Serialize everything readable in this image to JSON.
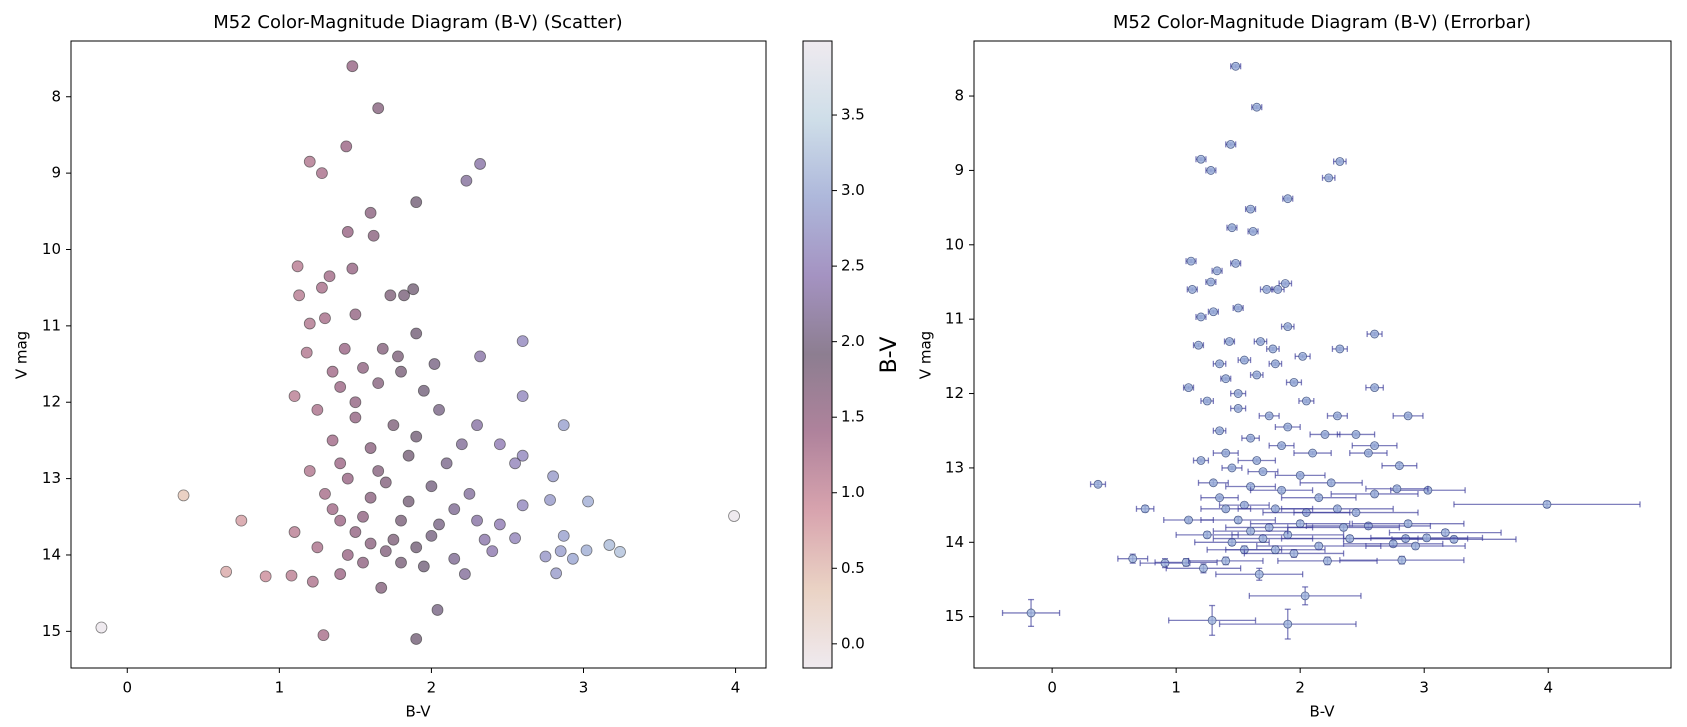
{
  "chart_data": [
    {
      "type": "scatter",
      "title": "M52 Color-Magnitude Diagram (B-V) (Scatter)",
      "xlabel": "B-V",
      "ylabel": "V mag",
      "x": [
        1.48,
        1.65,
        1.44,
        1.2,
        1.28,
        2.32,
        2.23,
        1.9,
        1.6,
        1.62,
        1.45,
        1.48,
        1.12,
        1.33,
        1.28,
        1.13,
        1.73,
        1.82,
        1.88,
        1.5,
        1.9,
        2.6,
        1.2,
        1.3,
        1.78,
        2.32,
        1.68,
        1.43,
        2.02,
        1.18,
        1.55,
        1.8,
        2.6,
        1.1,
        1.4,
        1.65,
        1.95,
        2.05,
        2.87,
        2.3,
        1.25,
        1.5,
        1.75,
        1.9,
        2.2,
        2.45,
        2.6,
        2.55,
        1.35,
        1.6,
        1.85,
        2.1,
        0.37,
        2.8,
        1.2,
        1.45,
        1.7,
        2.0,
        2.25,
        2.6,
        3.03,
        2.78,
        0.75,
        1.1,
        1.35,
        1.55,
        1.8,
        2.05,
        2.3,
        2.45,
        2.55,
        2.87,
        3.17,
        3.24,
        3.99,
        2.75,
        2.85,
        3.02,
        2.93,
        2.82,
        1.25,
        1.45,
        1.7,
        1.9,
        2.15,
        2.4,
        0.65,
        0.91,
        1.08,
        1.22,
        1.4,
        1.67,
        2.22,
        2.04,
        -0.17,
        1.29,
        1.9,
        1.5,
        1.75,
        1.6,
        1.4,
        1.85,
        2.0,
        1.55,
        1.3,
        1.5,
        1.35,
        2.35,
        1.95,
        1.65,
        2.15,
        1.4,
        1.6,
        1.8
      ],
      "y": [
        7.6,
        8.15,
        8.65,
        8.85,
        9.0,
        8.88,
        9.1,
        9.38,
        9.52,
        9.82,
        9.77,
        10.25,
        10.22,
        10.35,
        10.5,
        10.6,
        10.6,
        10.6,
        10.52,
        10.85,
        11.1,
        11.2,
        10.97,
        10.9,
        11.4,
        11.4,
        11.3,
        11.3,
        11.5,
        11.35,
        11.55,
        11.6,
        11.92,
        11.92,
        11.8,
        11.75,
        11.85,
        12.1,
        12.3,
        12.3,
        12.1,
        12.2,
        12.3,
        12.45,
        12.55,
        12.55,
        12.7,
        12.8,
        12.5,
        12.6,
        12.7,
        12.8,
        13.22,
        12.97,
        12.9,
        13.0,
        13.05,
        13.1,
        13.2,
        13.35,
        13.3,
        13.28,
        13.55,
        13.7,
        13.4,
        13.5,
        13.55,
        13.6,
        13.55,
        13.6,
        13.78,
        13.75,
        13.87,
        13.96,
        13.49,
        14.02,
        13.95,
        13.94,
        14.05,
        14.24,
        13.9,
        14.0,
        13.95,
        13.9,
        14.05,
        13.95,
        14.22,
        14.28,
        14.27,
        14.35,
        14.25,
        14.43,
        14.25,
        14.72,
        14.95,
        15.05,
        15.1,
        13.7,
        13.8,
        13.25,
        12.8,
        13.3,
        13.75,
        14.1,
        13.2,
        12.0,
        11.6,
        13.8,
        14.15,
        12.9,
        13.4,
        13.55,
        13.85,
        14.1
      ],
      "xlim": [
        -0.37,
        4.2
      ],
      "ylim": [
        15.48,
        7.27
      ],
      "xticks": [
        0,
        1,
        2,
        3,
        4
      ],
      "yticks": [
        8,
        9,
        10,
        11,
        12,
        13,
        14,
        15
      ],
      "edgecolor": "#333333",
      "alpha": 0.55,
      "colorbar": {
        "label": "B-V",
        "lim": [
          -0.16,
          3.99
        ],
        "ticks": [
          {
            "value": 0,
            "label": "0.0"
          },
          0.5,
          {
            "value": 1,
            "label": "1.0"
          },
          1.5,
          {
            "value": 2,
            "label": "2.0"
          },
          2.5,
          {
            "value": 3,
            "label": "3.0"
          },
          3.5
        ],
        "colormap": [
          "#e2d9e2",
          "#d9ae94",
          "#b8596c",
          "#6e1d4b",
          "#2f1436",
          "#5a3a8f",
          "#6b7dbd",
          "#a7c3d6",
          "#e2d9e2"
        ]
      }
    },
    {
      "type": "errorbar",
      "title": "M52 Color-Magnitude Diagram (B-V) (Errorbar)",
      "xlabel": "B-V",
      "ylabel": "V mag",
      "x": [
        1.48,
        1.65,
        1.44,
        1.2,
        1.28,
        2.32,
        2.23,
        1.9,
        1.6,
        1.62,
        1.45,
        1.48,
        1.12,
        1.33,
        1.28,
        1.13,
        1.73,
        1.82,
        1.88,
        1.5,
        1.9,
        2.6,
        1.2,
        1.3,
        1.78,
        2.32,
        1.68,
        1.43,
        2.02,
        1.18,
        1.55,
        1.8,
        2.6,
        1.1,
        1.4,
        1.65,
        1.95,
        2.05,
        2.87,
        2.3,
        1.25,
        1.5,
        1.75,
        1.9,
        2.2,
        2.45,
        2.6,
        2.55,
        1.35,
        1.6,
        1.85,
        2.1,
        0.37,
        2.8,
        1.2,
        1.45,
        1.7,
        2.0,
        2.25,
        2.6,
        3.03,
        2.78,
        0.75,
        1.1,
        1.35,
        1.55,
        1.8,
        2.05,
        2.3,
        2.45,
        2.55,
        2.87,
        3.17,
        3.24,
        3.99,
        2.75,
        2.85,
        3.02,
        2.93,
        2.82,
        1.25,
        1.45,
        1.7,
        1.9,
        2.15,
        2.4,
        0.65,
        0.91,
        1.08,
        1.22,
        1.4,
        1.67,
        2.22,
        2.04,
        -0.17,
        1.29,
        1.9,
        1.5,
        1.75,
        1.6,
        1.4,
        1.85,
        2.0,
        1.55,
        1.3,
        1.5,
        1.35,
        2.35,
        1.95,
        1.65,
        2.15,
        1.4,
        1.6,
        1.8
      ],
      "y": [
        7.6,
        8.15,
        8.65,
        8.85,
        9.0,
        8.88,
        9.1,
        9.38,
        9.52,
        9.82,
        9.77,
        10.25,
        10.22,
        10.35,
        10.5,
        10.6,
        10.6,
        10.6,
        10.52,
        10.85,
        11.1,
        11.2,
        10.97,
        10.9,
        11.4,
        11.4,
        11.3,
        11.3,
        11.5,
        11.35,
        11.55,
        11.6,
        11.92,
        11.92,
        11.8,
        11.75,
        11.85,
        12.1,
        12.3,
        12.3,
        12.1,
        12.2,
        12.3,
        12.45,
        12.55,
        12.55,
        12.7,
        12.8,
        12.5,
        12.6,
        12.7,
        12.8,
        13.22,
        12.97,
        12.9,
        13.0,
        13.05,
        13.1,
        13.2,
        13.35,
        13.3,
        13.28,
        13.55,
        13.7,
        13.4,
        13.5,
        13.55,
        13.6,
        13.55,
        13.6,
        13.78,
        13.75,
        13.87,
        13.96,
        13.49,
        14.02,
        13.95,
        13.94,
        14.05,
        14.24,
        13.9,
        14.0,
        13.95,
        13.9,
        14.05,
        13.95,
        14.22,
        14.28,
        14.27,
        14.35,
        14.25,
        14.43,
        14.25,
        14.72,
        14.95,
        15.05,
        15.1,
        13.7,
        13.8,
        13.25,
        12.8,
        13.3,
        13.75,
        14.1,
        13.2,
        12.0,
        11.6,
        13.8,
        14.15,
        12.9,
        13.4,
        13.55,
        13.85,
        14.1
      ],
      "xerr": [
        0.04,
        0.04,
        0.04,
        0.04,
        0.04,
        0.05,
        0.05,
        0.04,
        0.04,
        0.04,
        0.04,
        0.04,
        0.04,
        0.04,
        0.04,
        0.04,
        0.05,
        0.05,
        0.05,
        0.04,
        0.05,
        0.06,
        0.04,
        0.04,
        0.05,
        0.06,
        0.05,
        0.04,
        0.06,
        0.04,
        0.05,
        0.05,
        0.07,
        0.04,
        0.04,
        0.05,
        0.06,
        0.06,
        0.12,
        0.08,
        0.05,
        0.06,
        0.08,
        0.1,
        0.12,
        0.15,
        0.18,
        0.15,
        0.05,
        0.07,
        0.1,
        0.15,
        0.06,
        0.14,
        0.06,
        0.08,
        0.12,
        0.2,
        0.25,
        0.35,
        0.3,
        0.25,
        0.07,
        0.2,
        0.15,
        0.2,
        0.3,
        0.35,
        0.45,
        0.5,
        0.5,
        0.45,
        0.45,
        0.5,
        0.75,
        0.4,
        0.5,
        0.45,
        0.4,
        0.5,
        0.25,
        0.3,
        0.4,
        0.45,
        0.5,
        0.55,
        0.12,
        0.2,
        0.25,
        0.3,
        0.3,
        0.35,
        0.4,
        0.45,
        0.23,
        0.35,
        0.55,
        0.3,
        0.35,
        0.2,
        0.1,
        0.25,
        0.4,
        0.3,
        0.12,
        0.06,
        0.05,
        0.45,
        0.4,
        0.15,
        0.3,
        0.2,
        0.3,
        0.4
      ],
      "yerr": [
        0.02,
        0.02,
        0.02,
        0.02,
        0.02,
        0.02,
        0.02,
        0.02,
        0.02,
        0.02,
        0.02,
        0.02,
        0.02,
        0.02,
        0.02,
        0.02,
        0.02,
        0.02,
        0.02,
        0.02,
        0.02,
        0.02,
        0.02,
        0.02,
        0.02,
        0.02,
        0.02,
        0.02,
        0.02,
        0.02,
        0.02,
        0.02,
        0.02,
        0.02,
        0.02,
        0.02,
        0.02,
        0.02,
        0.02,
        0.02,
        0.02,
        0.02,
        0.02,
        0.02,
        0.02,
        0.02,
        0.02,
        0.02,
        0.02,
        0.02,
        0.02,
        0.02,
        0.03,
        0.03,
        0.02,
        0.02,
        0.02,
        0.02,
        0.03,
        0.03,
        0.03,
        0.03,
        0.04,
        0.03,
        0.02,
        0.03,
        0.03,
        0.03,
        0.03,
        0.03,
        0.04,
        0.04,
        0.04,
        0.04,
        0.04,
        0.04,
        0.04,
        0.04,
        0.04,
        0.05,
        0.04,
        0.04,
        0.04,
        0.04,
        0.04,
        0.04,
        0.06,
        0.06,
        0.05,
        0.06,
        0.05,
        0.08,
        0.05,
        0.12,
        0.18,
        0.2,
        0.2,
        0.04,
        0.04,
        0.03,
        0.02,
        0.03,
        0.04,
        0.05,
        0.03,
        0.02,
        0.02,
        0.04,
        0.05,
        0.02,
        0.03,
        0.03,
        0.04,
        0.05
      ],
      "color": "#9fb4dc",
      "edgecolor": "#3a4a7a",
      "ecolor": "#3b3b9a",
      "xlim": [
        -0.63,
        4.99
      ],
      "ylim": [
        15.69,
        7.26
      ],
      "xticks": [
        0,
        1,
        2,
        3,
        4
      ],
      "yticks": [
        8,
        9,
        10,
        11,
        12,
        13,
        14,
        15
      ]
    }
  ]
}
